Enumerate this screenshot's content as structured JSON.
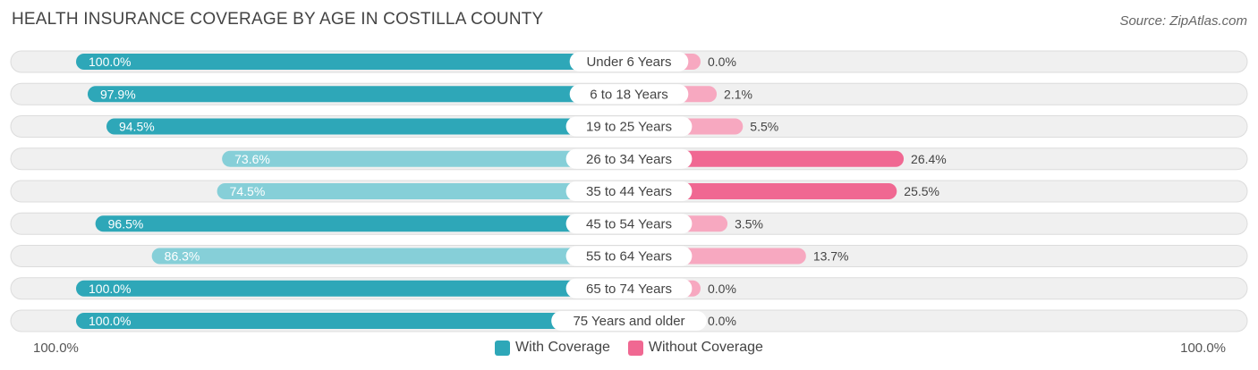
{
  "header": {
    "title": "HEALTH INSURANCE COVERAGE BY AGE IN COSTILLA COUNTY",
    "source": "Source: ZipAtlas.com"
  },
  "colors": {
    "with_strong": "#2ea7b8",
    "with_light": "#86cfd8",
    "without_strong": "#f06892",
    "without_light": "#f7a8c0",
    "row_bg": "#f0f0f0",
    "row_border": "#dcdcdc"
  },
  "chart_data": {
    "type": "bar",
    "title": "HEALTH INSURANCE COVERAGE BY AGE IN COSTILLA COUNTY",
    "categories": [
      "Under 6 Years",
      "6 to 18 Years",
      "19 to 25 Years",
      "26 to 34 Years",
      "35 to 44 Years",
      "45 to 54 Years",
      "55 to 64 Years",
      "65 to 74 Years",
      "75 Years and older"
    ],
    "series": [
      {
        "name": "With Coverage",
        "values": [
          100.0,
          97.9,
          94.5,
          73.6,
          74.5,
          96.5,
          86.3,
          100.0,
          100.0
        ],
        "labels": [
          "100.0%",
          "97.9%",
          "94.5%",
          "73.6%",
          "74.5%",
          "96.5%",
          "86.3%",
          "100.0%",
          "100.0%"
        ]
      },
      {
        "name": "Without Coverage",
        "values": [
          0.0,
          2.1,
          5.5,
          26.4,
          25.5,
          3.5,
          13.7,
          0.0,
          0.0
        ],
        "labels": [
          "0.0%",
          "2.1%",
          "5.5%",
          "26.4%",
          "25.5%",
          "3.5%",
          "13.7%",
          "0.0%",
          "0.0%"
        ]
      }
    ],
    "axis": {
      "left_label": "100.0%",
      "right_label": "100.0%",
      "max": 100
    },
    "legend": [
      "With Coverage",
      "Without Coverage"
    ]
  }
}
